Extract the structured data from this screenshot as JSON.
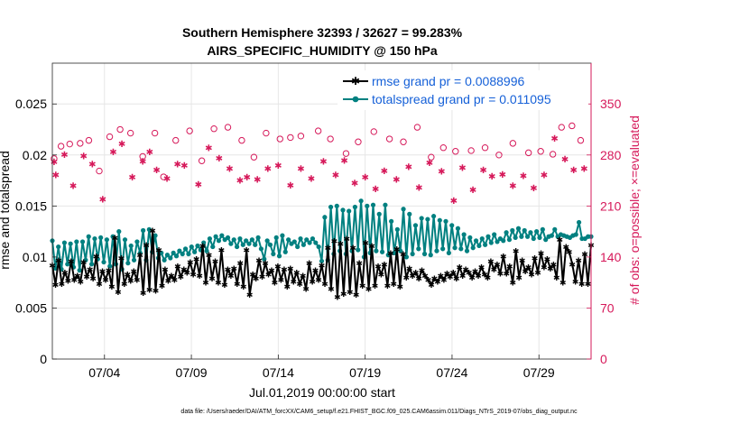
{
  "colors": {
    "rmse": "#000000",
    "spread": "#008080",
    "obs": "#d6195a",
    "legend_text": "#1560d8",
    "grid": "#e6e6e6"
  },
  "chart_data": {
    "type": "line",
    "title": "Southern Hemisphere 32393 / 32627 = 99.283%",
    "subtitle": "AIRS_SPECIFIC_HUMIDITY @ 150 hPa",
    "xlabel": "Jul.01,2019 00:00:00 start",
    "ylabel": "rmse and totalspread",
    "ylabel_right": "# of obs: o=possible; ×=evaluated",
    "footnote": "data file: /Users/raeder/DAI/ATM_forcXX/CAM6_setup/f.e21.FHIST_BGC.f09_025.CAM6assim.011/Diags_NTrS_2019-07/obs_diag_output.nc",
    "x_range_days": [
      1.0,
      32.0
    ],
    "ylim": [
      0,
      0.029
    ],
    "ylim_right": [
      0,
      406
    ],
    "x_ticks": [
      "07/04",
      "07/09",
      "07/14",
      "07/19",
      "07/24",
      "07/29"
    ],
    "y_ticks": [
      "0",
      "0.005",
      "0.01",
      "0.015",
      "0.02",
      "0.025"
    ],
    "y_ticks_right": [
      "0",
      "70",
      "140",
      "210",
      "280",
      "350"
    ],
    "grid": true,
    "legend_position": "top-right",
    "series": [
      {
        "name": "rmse grand pr = 0.0088996",
        "color": "#000000",
        "marker": "asterisk",
        "values": [
          0.0092,
          0.0073,
          0.0097,
          0.0074,
          0.0085,
          0.0077,
          0.0096,
          0.0078,
          0.0082,
          0.0076,
          0.0095,
          0.0081,
          0.0088,
          0.0079,
          0.0101,
          0.0074,
          0.0086,
          0.0078,
          0.0087,
          0.0071,
          0.0119,
          0.0066,
          0.0099,
          0.0074,
          0.0083,
          0.0077,
          0.0086,
          0.0078,
          0.0102,
          0.0065,
          0.0112,
          0.0068,
          0.0126,
          0.0067,
          0.0107,
          0.0072,
          0.0088,
          0.0077,
          0.0082,
          0.0078,
          0.0091,
          0.0081,
          0.0088,
          0.0085,
          0.0095,
          0.0083,
          0.0098,
          0.0082,
          0.0111,
          0.0075,
          0.0102,
          0.0079,
          0.0096,
          0.0075,
          0.0107,
          0.0073,
          0.0088,
          0.0082,
          0.0089,
          0.0074,
          0.0094,
          0.0071,
          0.0107,
          0.0063,
          0.0083,
          0.0079,
          0.0097,
          0.0081,
          0.0094,
          0.0083,
          0.0087,
          0.0075,
          0.0091,
          0.0078,
          0.0088,
          0.0071,
          0.0089,
          0.0076,
          0.0085,
          0.0074,
          0.0082,
          0.0069,
          0.0094,
          0.0076,
          0.0087,
          0.0078,
          0.0092,
          0.0074,
          0.0109,
          0.0069,
          0.0116,
          0.0061,
          0.0113,
          0.0064,
          0.0118,
          0.0066,
          0.0109,
          0.0063,
          0.0094,
          0.0072,
          0.0114,
          0.0069,
          0.0111,
          0.0072,
          0.0091,
          0.0083,
          0.0093,
          0.0072,
          0.0104,
          0.0074,
          0.0108,
          0.0071,
          0.0103,
          0.008,
          0.0089,
          0.0082,
          0.0085,
          0.0079,
          0.0087,
          0.0082,
          0.0078,
          0.0073,
          0.0079,
          0.0076,
          0.0082,
          0.0078,
          0.0084,
          0.0081,
          0.0085,
          0.0079,
          0.009,
          0.0082,
          0.0088,
          0.0085,
          0.008,
          0.0086,
          0.0082,
          0.009,
          0.0083,
          0.008,
          0.0096,
          0.0088,
          0.0093,
          0.0084,
          0.0101,
          0.0084,
          0.0091,
          0.0075,
          0.0106,
          0.008,
          0.0097,
          0.0086,
          0.009,
          0.0083,
          0.0099,
          0.0085,
          0.0104,
          0.009,
          0.0098,
          0.0089,
          0.0093,
          0.008,
          0.0117,
          0.0075,
          0.011,
          0.0105,
          0.0093,
          0.0076,
          0.0097,
          0.0074,
          0.0103,
          0.0074,
          0.0112
        ]
      },
      {
        "name": "totalspread grand pr = 0.011095",
        "color": "#008080",
        "marker": "dot",
        "values": [
          0.0116,
          0.0089,
          0.011,
          0.0088,
          0.0114,
          0.0093,
          0.0113,
          0.009,
          0.0115,
          0.0087,
          0.0115,
          0.0097,
          0.012,
          0.0093,
          0.0118,
          0.0098,
          0.0119,
          0.0095,
          0.0117,
          0.0091,
          0.012,
          0.0093,
          0.0125,
          0.0088,
          0.0117,
          0.0094,
          0.0111,
          0.0097,
          0.0115,
          0.0104,
          0.0126,
          0.0097,
          0.0127,
          0.0105,
          0.0121,
          0.0099,
          0.0104,
          0.0097,
          0.0102,
          0.0099,
          0.0104,
          0.0101,
          0.0106,
          0.0103,
          0.0108,
          0.0103,
          0.011,
          0.0105,
          0.0111,
          0.0107,
          0.0114,
          0.0106,
          0.0118,
          0.011,
          0.012,
          0.0116,
          0.0121,
          0.0117,
          0.0119,
          0.0113,
          0.0117,
          0.011,
          0.0118,
          0.0112,
          0.0116,
          0.0113,
          0.0117,
          0.0112,
          0.0119,
          0.0108,
          0.0098,
          0.0116,
          0.0112,
          0.0103,
          0.0119,
          0.0101,
          0.0121,
          0.0105,
          0.0117,
          0.0113,
          0.0115,
          0.011,
          0.0118,
          0.0112,
          0.0117,
          0.0114,
          0.0118,
          0.0114,
          0.011,
          0.0096,
          0.0139,
          0.0097,
          0.0149,
          0.0103,
          0.015,
          0.0106,
          0.0146,
          0.0103,
          0.0145,
          0.0106,
          0.0149,
          0.0107,
          0.0155,
          0.01,
          0.015,
          0.0104,
          0.0151,
          0.0106,
          0.0142,
          0.0105,
          0.0151,
          0.0102,
          0.0135,
          0.0104,
          0.0127,
          0.0106,
          0.0147,
          0.01,
          0.0142,
          0.0103,
          0.0131,
          0.0108,
          0.0138,
          0.0103,
          0.0137,
          0.0102,
          0.014,
          0.0106,
          0.0136,
          0.0108,
          0.0135,
          0.0104,
          0.0131,
          0.0109,
          0.0128,
          0.0108,
          0.0122,
          0.0106,
          0.0119,
          0.0109,
          0.0116,
          0.0111,
          0.0118,
          0.0112,
          0.012,
          0.0114,
          0.0122,
          0.0115,
          0.0118,
          0.0116,
          0.0124,
          0.0117,
          0.0126,
          0.0119,
          0.0128,
          0.012,
          0.0126,
          0.012,
          0.0124,
          0.0118,
          0.0125,
          0.0119,
          0.0127,
          0.0117,
          0.012,
          0.0121,
          0.0127,
          0.012,
          0.0122,
          0.0121,
          0.012,
          0.0119,
          0.0121,
          0.0122,
          0.0134,
          0.0118,
          0.0118,
          0.012,
          0.012
        ]
      }
    ],
    "obs_possible": [
      [
        1.1,
        275
      ],
      [
        1.5,
        292
      ],
      [
        2.0,
        295
      ],
      [
        2.6,
        296
      ],
      [
        3.1,
        300
      ],
      [
        3.7,
        258
      ],
      [
        4.3,
        305
      ],
      [
        4.9,
        315
      ],
      [
        5.5,
        310
      ],
      [
        6.2,
        278
      ],
      [
        6.9,
        310
      ],
      [
        7.4,
        250
      ],
      [
        8.1,
        300
      ],
      [
        8.9,
        313
      ],
      [
        9.6,
        272
      ],
      [
        10.3,
        316
      ],
      [
        11.1,
        318
      ],
      [
        11.9,
        300
      ],
      [
        12.6,
        277
      ],
      [
        13.3,
        310
      ],
      [
        14.1,
        302
      ],
      [
        14.7,
        304
      ],
      [
        15.3,
        306
      ],
      [
        16.3,
        313
      ],
      [
        17.0,
        302
      ],
      [
        17.9,
        282
      ],
      [
        18.6,
        298
      ],
      [
        19.5,
        312
      ],
      [
        20.4,
        302
      ],
      [
        21.2,
        298
      ],
      [
        22.0,
        318
      ],
      [
        22.8,
        277
      ],
      [
        23.5,
        290
      ],
      [
        24.2,
        285
      ],
      [
        25.1,
        286
      ],
      [
        25.9,
        290
      ],
      [
        26.7,
        280
      ],
      [
        27.5,
        296
      ],
      [
        28.4,
        283
      ],
      [
        29.1,
        285
      ],
      [
        29.8,
        281
      ],
      [
        30.3,
        318
      ],
      [
        30.9,
        320
      ],
      [
        31.4,
        300
      ]
    ],
    "obs_evaluated": [
      [
        1.1,
        271
      ],
      [
        1.2,
        253
      ],
      [
        1.7,
        281
      ],
      [
        2.2,
        238
      ],
      [
        2.8,
        279
      ],
      [
        3.3,
        268
      ],
      [
        3.9,
        220
      ],
      [
        4.5,
        285
      ],
      [
        5.0,
        296
      ],
      [
        5.6,
        250
      ],
      [
        6.2,
        272
      ],
      [
        6.6,
        285
      ],
      [
        7.0,
        260
      ],
      [
        7.6,
        248
      ],
      [
        8.2,
        268
      ],
      [
        8.6,
        266
      ],
      [
        9.4,
        240
      ],
      [
        10.0,
        290
      ],
      [
        10.6,
        276
      ],
      [
        11.2,
        262
      ],
      [
        11.8,
        246
      ],
      [
        12.2,
        250
      ],
      [
        12.8,
        247
      ],
      [
        13.4,
        262
      ],
      [
        14.0,
        266
      ],
      [
        14.7,
        239
      ],
      [
        15.3,
        262
      ],
      [
        15.9,
        248
      ],
      [
        16.6,
        272
      ],
      [
        17.3,
        253
      ],
      [
        17.8,
        273
      ],
      [
        18.4,
        242
      ],
      [
        19.0,
        250
      ],
      [
        19.6,
        234
      ],
      [
        20.1,
        259
      ],
      [
        20.8,
        247
      ],
      [
        21.5,
        264
      ],
      [
        22.1,
        236
      ],
      [
        22.7,
        270
      ],
      [
        23.4,
        258
      ],
      [
        24.1,
        218
      ],
      [
        24.6,
        263
      ],
      [
        25.2,
        233
      ],
      [
        25.8,
        260
      ],
      [
        26.3,
        251
      ],
      [
        26.9,
        254
      ],
      [
        27.5,
        238
      ],
      [
        28.1,
        252
      ],
      [
        28.7,
        235
      ],
      [
        29.3,
        253
      ],
      [
        29.9,
        303
      ],
      [
        30.5,
        275
      ],
      [
        31.0,
        260
      ],
      [
        31.6,
        262
      ]
    ]
  }
}
